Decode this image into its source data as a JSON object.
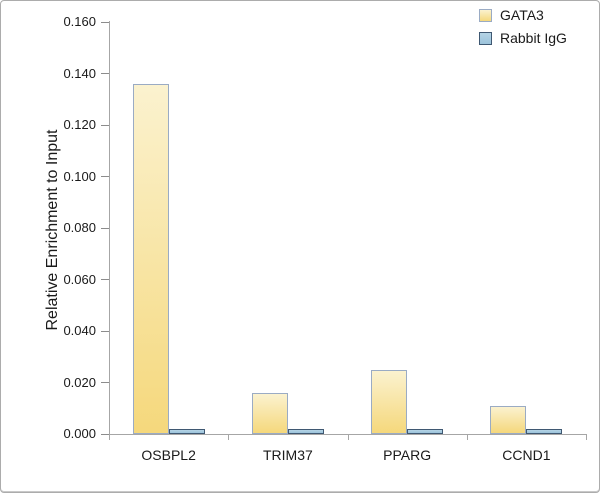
{
  "chart_data": {
    "type": "bar",
    "title": "",
    "xlabel": "",
    "ylabel": "Relative Enrichment to Input",
    "categories": [
      "OSBPL2",
      "TRIM37",
      "PPARG",
      "CCND1"
    ],
    "series": [
      {
        "name": "GATA3",
        "values": [
          0.136,
          0.016,
          0.025,
          0.011
        ],
        "fill_top": "#FBF2CF",
        "fill_bottom": "#F5D87C",
        "border": "#9AABC4"
      },
      {
        "name": "Rabbit IgG",
        "values": [
          0.002,
          0.002,
          0.002,
          0.002
        ],
        "fill_top": "#B5D4E5",
        "fill_bottom": "#9CC3DB",
        "border": "#3F5872"
      }
    ],
    "ylim": [
      0,
      0.16
    ],
    "ytick_labels": [
      "0.000",
      "0.020",
      "0.040",
      "0.060",
      "0.080",
      "0.100",
      "0.120",
      "0.140",
      "0.160"
    ],
    "grid": false,
    "legend_position": "top-right"
  },
  "colors": {
    "axis": "#A6A6A6",
    "tick": "#8C8C8C",
    "text": "#1A1A1A",
    "background": "#FFFFFF"
  }
}
